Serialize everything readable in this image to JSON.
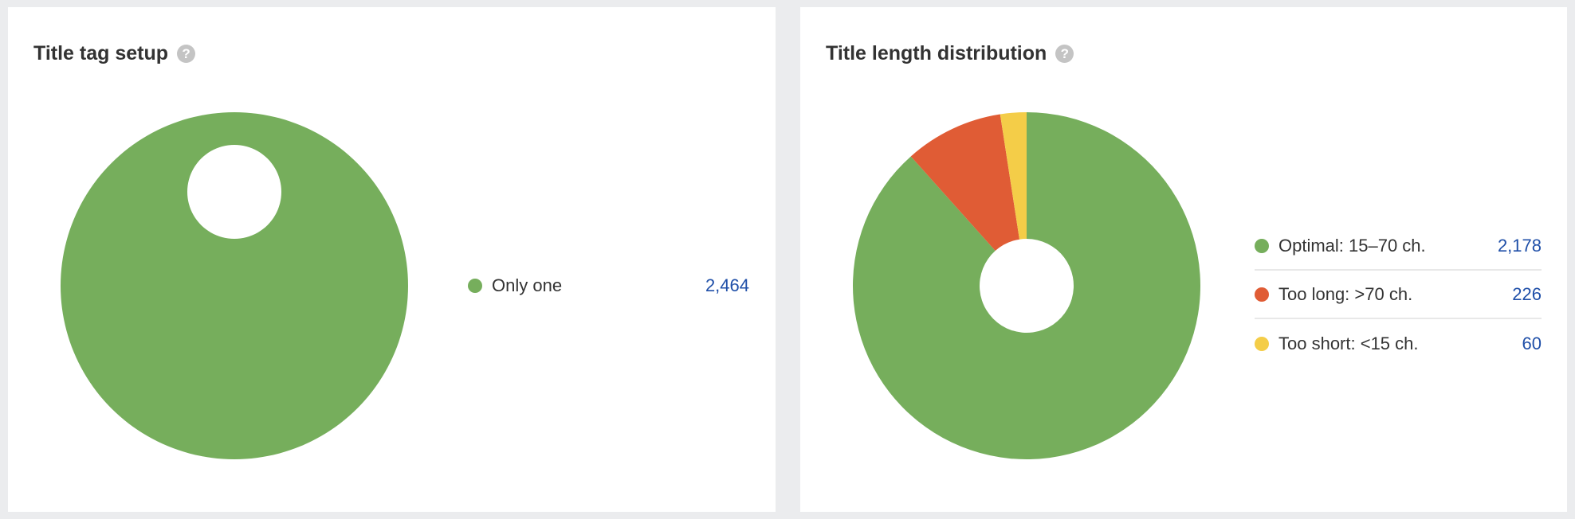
{
  "chart_data": [
    {
      "type": "pie",
      "donut": true,
      "title": "Title tag setup",
      "categories": [
        "Only one"
      ],
      "values": [
        2464
      ],
      "value_labels": [
        "2,464"
      ],
      "colors": [
        "#76ae5c"
      ],
      "legend": "right"
    },
    {
      "type": "pie",
      "donut": true,
      "title": "Title length distribution",
      "categories": [
        "Optimal: 15–70 ch.",
        "Too long: >70 ch.",
        "Too short: <15 ch."
      ],
      "values": [
        2178,
        226,
        60
      ],
      "value_labels": [
        "2,178",
        "226",
        "60"
      ],
      "colors": [
        "#76ae5c",
        "#e05c35",
        "#f4cd48"
      ],
      "legend": "right"
    }
  ],
  "help_icon": "?",
  "value_color": "#1f4fa8"
}
